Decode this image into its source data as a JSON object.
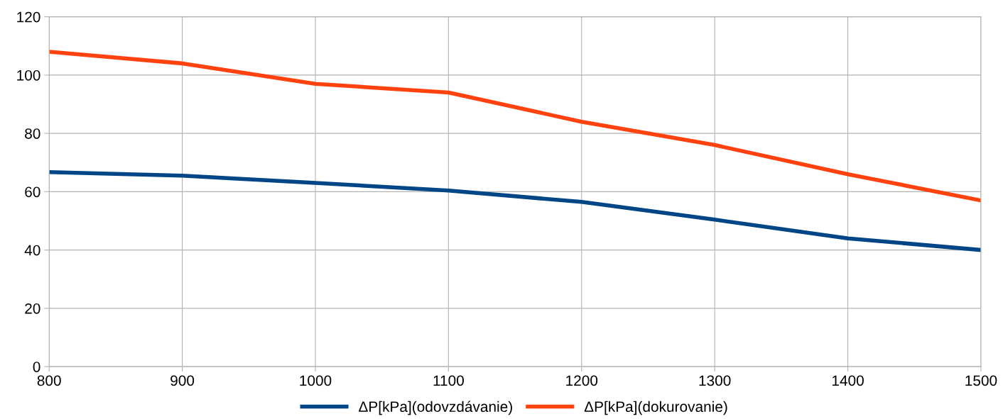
{
  "chart_data": {
    "type": "line",
    "x": [
      800,
      900,
      1000,
      1100,
      1200,
      1300,
      1400,
      1500
    ],
    "series": [
      {
        "name": "ΔP[kPa](odovzdávanie)",
        "color": "#004586",
        "values": [
          66.7,
          65.5,
          63,
          60.4,
          56.5,
          50.4,
          44,
          40
        ]
      },
      {
        "name": "ΔP[kPa](dokurovanie)",
        "color": "#ff420e",
        "values": [
          108,
          104,
          97,
          94,
          84,
          76,
          66,
          57
        ]
      }
    ],
    "xlim": [
      800,
      1500
    ],
    "xticks": [
      800,
      900,
      1000,
      1100,
      1200,
      1300,
      1400,
      1500
    ],
    "ylim": [
      0,
      120
    ],
    "yticks": [
      0,
      20,
      40,
      60,
      80,
      100,
      120
    ],
    "grid": true,
    "legend": "bottom",
    "marker": "none",
    "line_style": "solid"
  }
}
